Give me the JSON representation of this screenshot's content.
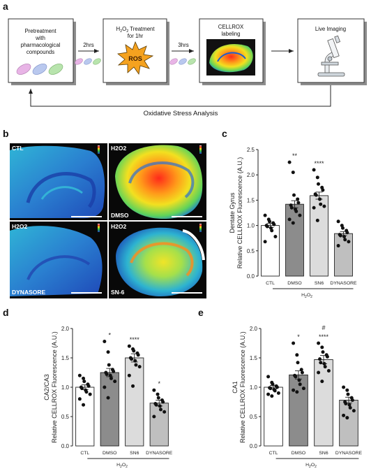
{
  "panels": {
    "a": "a",
    "b": "b",
    "c": "c",
    "d": "d",
    "e": "e"
  },
  "schematic": {
    "step1": [
      "Pretreatment",
      "with",
      "pharmacological",
      "compounds"
    ],
    "arrow1": "2hrs",
    "step2_pre": "H",
    "step2_sub": "2",
    "step2_mid": "O",
    "step2_sub2": "2",
    "step2_post": " Treatment",
    "step2_line2": "for 1hr",
    "burst": "ROS",
    "arrow2": "3hrs",
    "step3": "CELLROX",
    "step3_line2": "labeling",
    "step4": "Live Imaging",
    "feedback": "Oxidative Stress Analysis"
  },
  "images": [
    {
      "label": "CTL",
      "corner": "top-left"
    },
    {
      "label": "H2O2",
      "corner": "top-left",
      "label2": "DMSO"
    },
    {
      "label": "H2O2",
      "corner": "top-left",
      "label2": "DYNASORE"
    },
    {
      "label": "H2O2",
      "corner": "top-left",
      "label2": "SN-6"
    }
  ],
  "colors": {
    "ctl": "#ffffff",
    "dmso": "#8c8c8c",
    "sn6": "#dcdcdc",
    "dynasore": "#bfbfbf",
    "points": "#111111"
  },
  "chart_data": [
    {
      "type": "bar",
      "panel": "c",
      "title_lines": [
        "Dentate Gyrus",
        "Relative CELLROX Fluorescence (A.U.)"
      ],
      "categories": [
        "CTL",
        "DMSO",
        "SN6",
        "DYNASORE"
      ],
      "group_label": "H2O2",
      "ylim": [
        0,
        2.5
      ],
      "yticks": [
        "0.0",
        "0.5",
        "1.0",
        "1.5",
        "2.0",
        "2.5"
      ],
      "values": [
        1.0,
        1.42,
        1.59,
        0.84
      ],
      "errors": [
        0.04,
        0.07,
        0.07,
        0.04
      ],
      "significance": [
        "",
        "**",
        "****",
        ""
      ],
      "significance2": [
        "",
        "",
        "",
        ""
      ],
      "points": [
        [
          1.2,
          1.12,
          1.08,
          1.05,
          1.02,
          1.0,
          0.98,
          0.95,
          0.9,
          0.78,
          0.68
        ],
        [
          2.25,
          2.05,
          1.6,
          1.52,
          1.45,
          1.4,
          1.35,
          1.32,
          1.28,
          1.2,
          1.12,
          1.05
        ],
        [
          2.1,
          1.95,
          1.82,
          1.75,
          1.7,
          1.62,
          1.6,
          1.52,
          1.42,
          1.38,
          1.35,
          1.1
        ],
        [
          1.08,
          1.0,
          0.95,
          0.9,
          0.86,
          0.82,
          0.8,
          0.78,
          0.72,
          0.68,
          0.6
        ]
      ]
    },
    {
      "type": "bar",
      "panel": "d",
      "title_lines": [
        "CA2/CA3",
        "Relative CELLROX Fluorescence (A.U.)"
      ],
      "categories": [
        "CTL",
        "DMSO",
        "SN6",
        "DYNASORE"
      ],
      "group_label": "H2O2",
      "ylim": [
        0,
        2.0
      ],
      "yticks": [
        "0.0",
        "0.5",
        "1.0",
        "1.5",
        "2.0"
      ],
      "values": [
        1.0,
        1.25,
        1.5,
        0.73
      ],
      "errors": [
        0.04,
        0.07,
        0.07,
        0.05
      ],
      "significance": [
        "",
        "*",
        "****",
        "*"
      ],
      "significance2": [
        "",
        "",
        "",
        ""
      ],
      "points": [
        [
          1.2,
          1.15,
          1.1,
          1.05,
          1.02,
          1.0,
          0.98,
          0.95,
          0.92,
          0.88,
          0.8,
          0.7
        ],
        [
          1.78,
          1.6,
          1.38,
          1.3,
          1.27,
          1.25,
          1.22,
          1.2,
          1.15,
          1.1,
          1.0,
          0.82
        ],
        [
          1.7,
          1.65,
          1.62,
          1.58,
          1.55,
          1.5,
          1.48,
          1.45,
          1.38,
          1.35,
          1.2,
          1.02
        ],
        [
          0.95,
          0.88,
          0.82,
          0.78,
          0.75,
          0.72,
          0.7,
          0.68,
          0.62,
          0.58,
          0.5
        ]
      ]
    },
    {
      "type": "bar",
      "panel": "e",
      "title_lines": [
        "CA1",
        "Relative CELLROX Fluorescence (A.U.)"
      ],
      "categories": [
        "CTL",
        "DMSO",
        "SN6",
        "DYNASORE"
      ],
      "group_label": "H2O2",
      "ylim": [
        0,
        2.0
      ],
      "yticks": [
        "0.0",
        "0.5",
        "1.0",
        "1.5",
        "2.0"
      ],
      "values": [
        1.0,
        1.21,
        1.47,
        0.78
      ],
      "errors": [
        0.03,
        0.07,
        0.07,
        0.05
      ],
      "significance": [
        "",
        "*",
        "****",
        ""
      ],
      "significance2": [
        "",
        "",
        "#",
        ""
      ],
      "points": [
        [
          1.18,
          1.08,
          1.05,
          1.02,
          1.0,
          0.99,
          0.98,
          0.96,
          0.94,
          0.9,
          0.88,
          0.85
        ],
        [
          1.75,
          1.55,
          1.42,
          1.3,
          1.25,
          1.2,
          1.18,
          1.12,
          1.05,
          0.98,
          0.95,
          0.92
        ],
        [
          1.75,
          1.68,
          1.6,
          1.55,
          1.52,
          1.48,
          1.42,
          1.4,
          1.35,
          1.28,
          1.25,
          1.1
        ],
        [
          1.0,
          0.95,
          0.88,
          0.82,
          0.78,
          0.75,
          0.72,
          0.7,
          0.65,
          0.6,
          0.52,
          0.48
        ]
      ]
    }
  ]
}
